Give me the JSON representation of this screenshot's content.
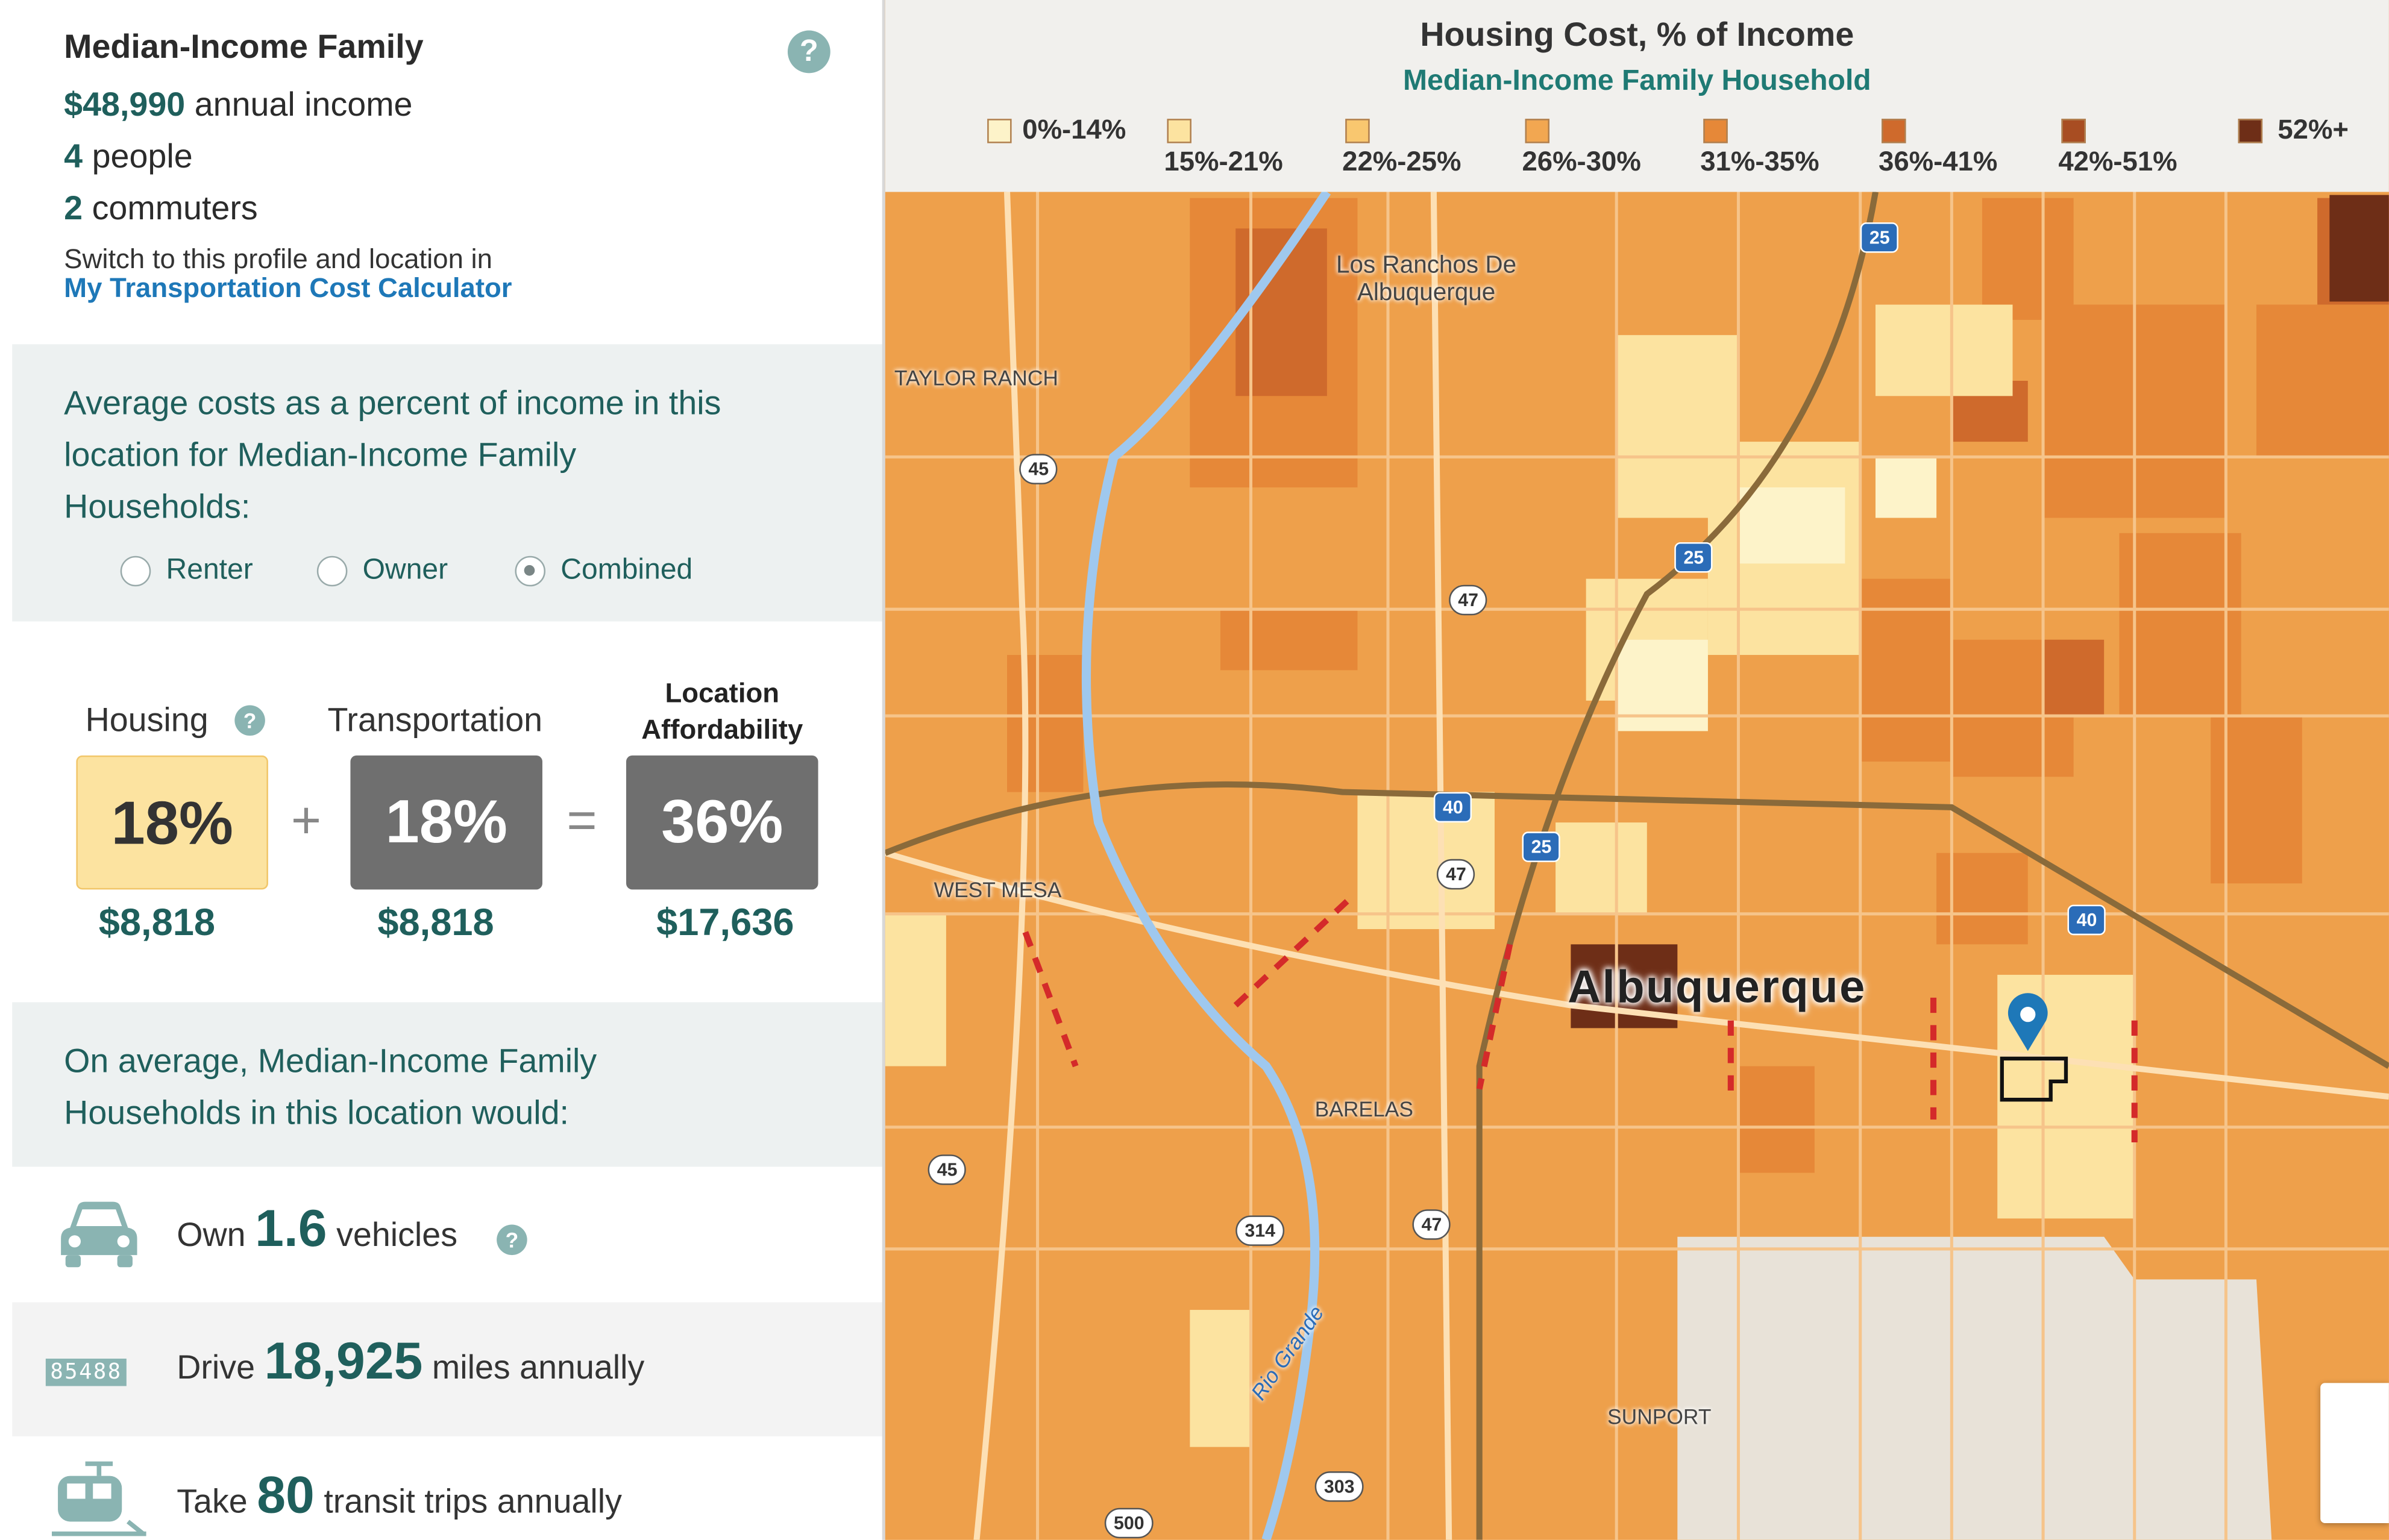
{
  "profile": {
    "title": "Median-Income Family",
    "income_value": "$48,990",
    "income_suffix": "annual income",
    "people_value": "4",
    "people_suffix": "people",
    "commuters_value": "2",
    "commuters_suffix": "commuters",
    "switch_text": "Switch to this profile and location in",
    "calculator_link": "My Transportation Cost Calculator"
  },
  "averages": {
    "line1": "Average costs as a percent of income in this",
    "line2": "location for Median-Income Family",
    "line3": "Households:",
    "options": [
      "Renter",
      "Owner",
      "Combined"
    ],
    "selected": "Combined"
  },
  "costs": {
    "housing_label": "Housing",
    "transport_label": "Transportation",
    "loc_line1": "Location",
    "loc_line2": "Affordability",
    "housing_pct": "18%",
    "transport_pct": "18%",
    "total_pct": "36%",
    "plus": "+",
    "equals": "=",
    "housing_cost": "$8,818",
    "transport_cost": "$8,818",
    "total_cost": "$17,636"
  },
  "onavg": {
    "line1": "On average, Median-Income Family",
    "line2": "Households in this location would:"
  },
  "stats": {
    "own_prefix": "Own",
    "own_value": "1.6",
    "own_suffix": "vehicles",
    "odometer": "85488",
    "drive_prefix": "Drive",
    "drive_value": "18,925",
    "drive_suffix": "miles annually",
    "take_prefix": "Take",
    "take_value": "80",
    "take_suffix": "transit trips annually"
  },
  "map": {
    "title": "Housing Cost, % of Income",
    "subtitle": "Median-Income Family Household",
    "legend": [
      {
        "label": "0%-14%",
        "color": "#fdf3c9"
      },
      {
        "label": "15%-21%",
        "color": "#fce3a0"
      },
      {
        "label": "22%-25%",
        "color": "#f9c76f"
      },
      {
        "label": "26%-30%",
        "color": "#f2a751"
      },
      {
        "label": "31%-35%",
        "color": "#e68838"
      },
      {
        "label": "36%-41%",
        "color": "#cf6a2c"
      },
      {
        "label": "42%-51%",
        "color": "#a84d22"
      },
      {
        "label": "52%+",
        "color": "#6e2e17"
      }
    ],
    "city": "Albuquerque",
    "places": [
      "Los Ranchos De",
      "Albuquerque",
      "TAYLOR RANCH",
      "WEST MESA",
      "BARELAS",
      "SUNPORT",
      "Rio Grande"
    ],
    "shields": [
      "45",
      "47",
      "25",
      "40",
      "47",
      "25",
      "40",
      "25",
      "45",
      "314",
      "47",
      "303",
      "500"
    ]
  }
}
